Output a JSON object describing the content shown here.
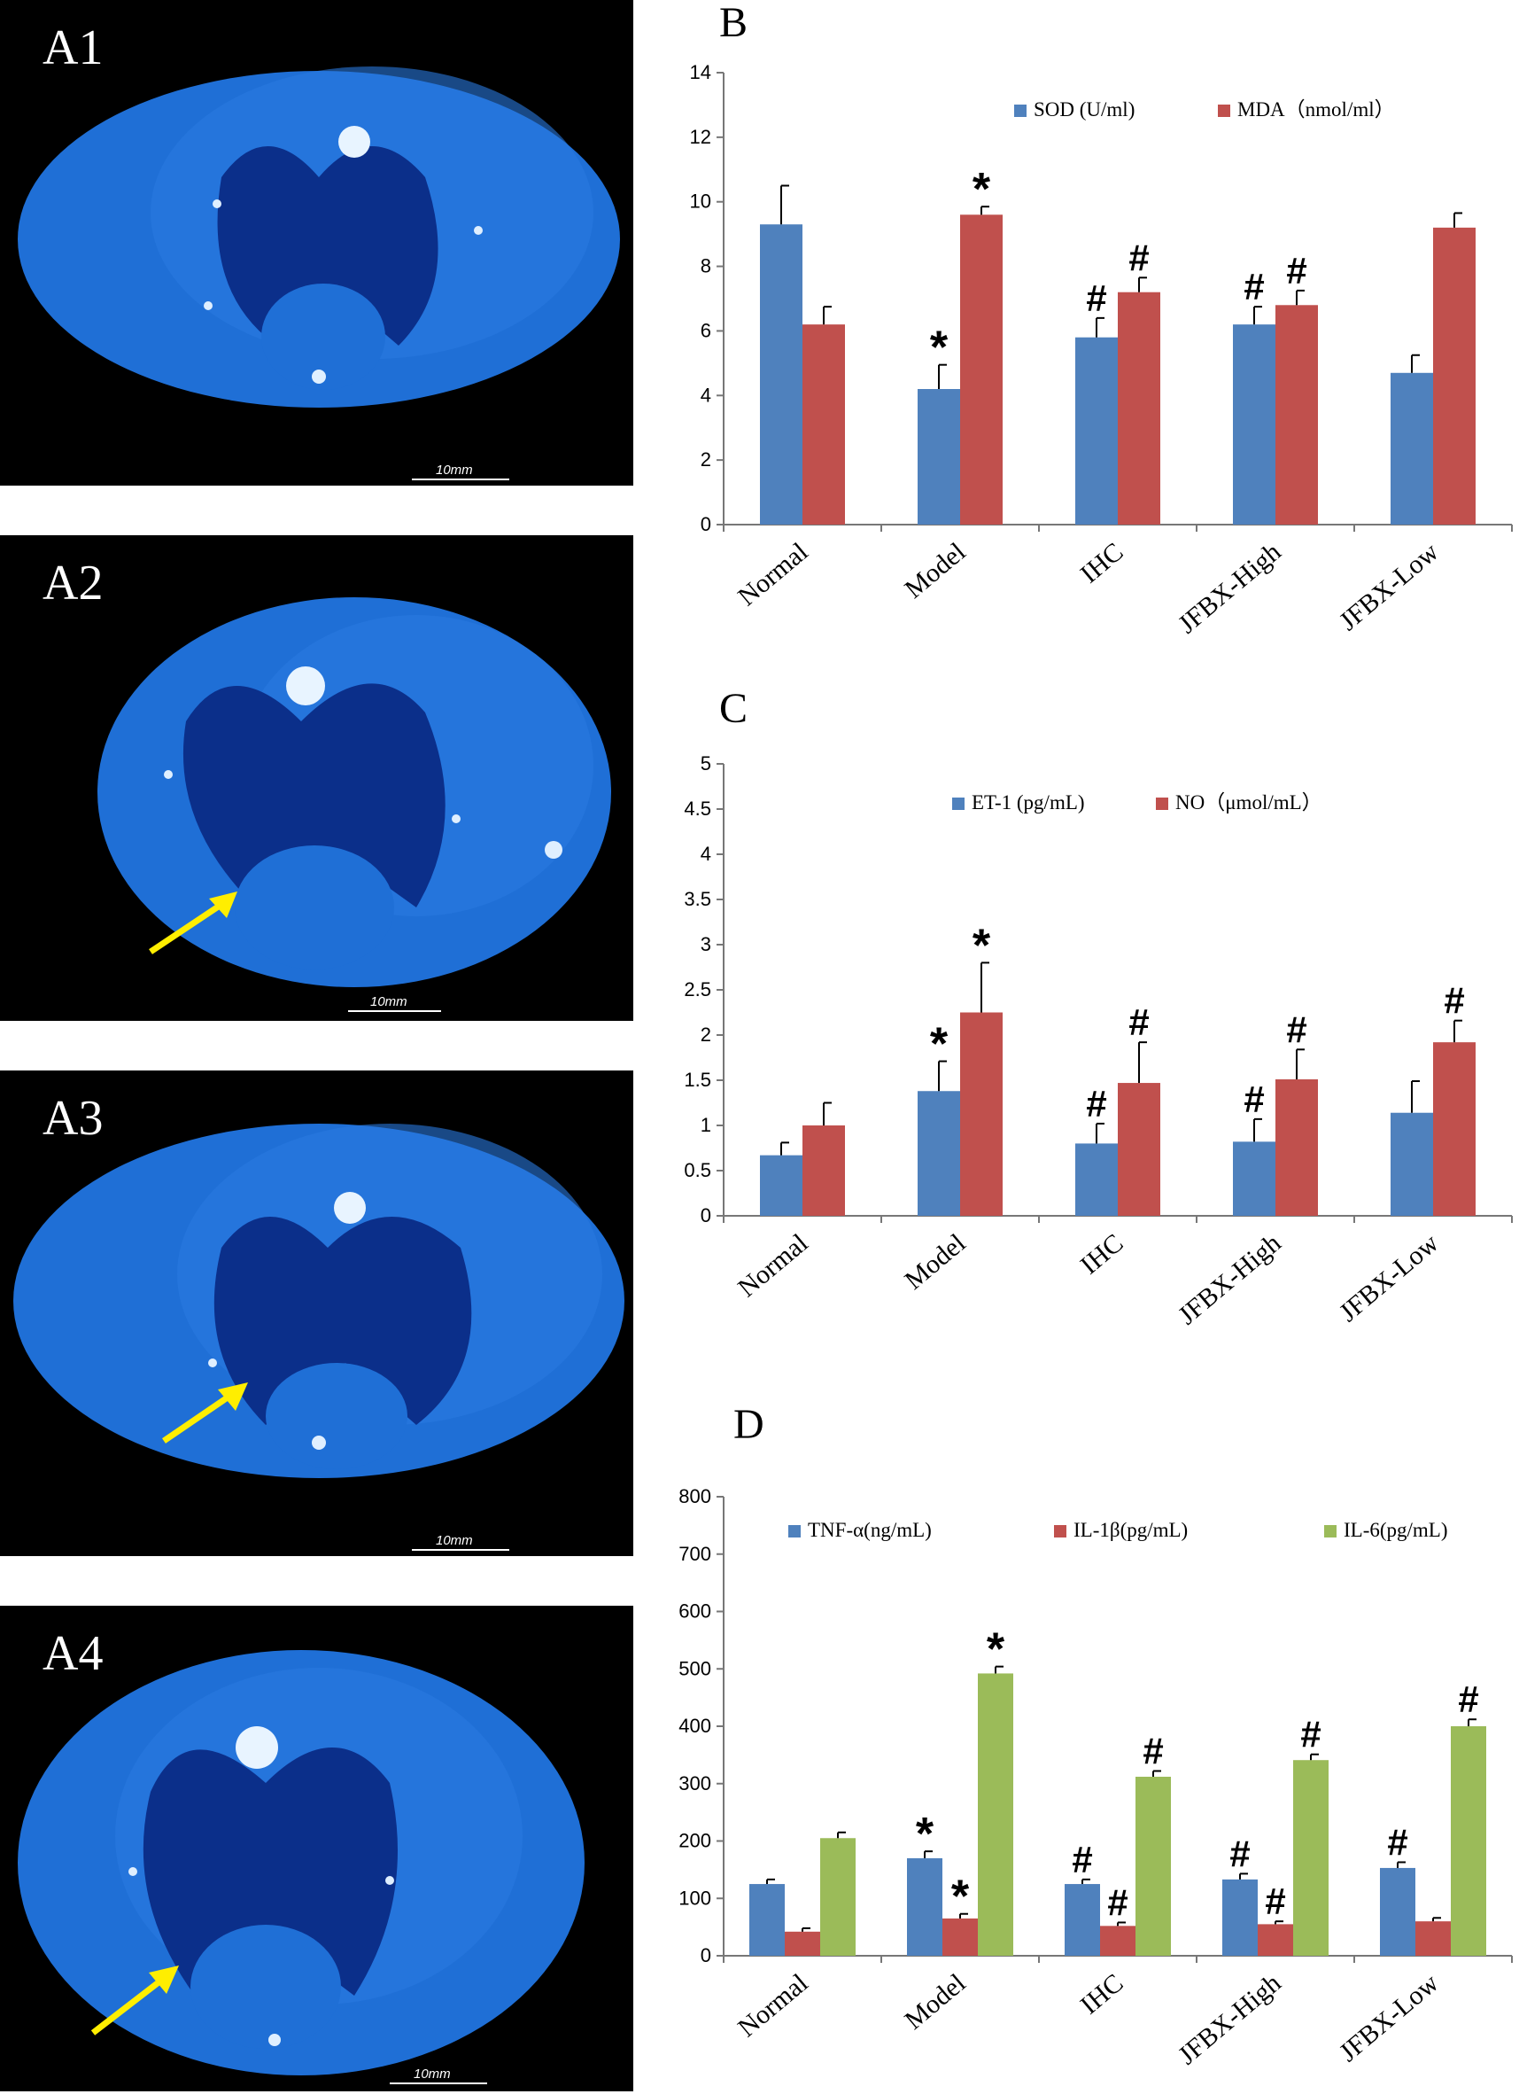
{
  "ct_panels": [
    {
      "label": "A1",
      "scale": "10mm",
      "arrow": false
    },
    {
      "label": "A2",
      "scale": "10mm",
      "arrow": true
    },
    {
      "label": "A3",
      "scale": "10mm",
      "arrow": true
    },
    {
      "label": "A4",
      "scale": "10mm",
      "arrow": true
    }
  ],
  "colors": {
    "blue": "#4F81BD",
    "red": "#C0504D",
    "green": "#9BBB59",
    "ct_body": "#1f6fd6",
    "ct_lung": "#0b2f8a",
    "arrow": "#ffee00"
  },
  "chart_data": [
    {
      "panel": "B",
      "type": "bar",
      "categories": [
        "Normal",
        "Model",
        "IHC",
        "JFBX-High",
        "JFBX-Low"
      ],
      "ylim": [
        0,
        14
      ],
      "yticks": [
        "0",
        "2",
        "4",
        "6",
        "8",
        "10",
        "12",
        "14"
      ],
      "ytick_values": [
        0,
        2,
        4,
        6,
        8,
        10,
        12,
        14
      ],
      "legend_position": "top-right",
      "series": [
        {
          "name": "SOD (U/ml)",
          "color": "#4F81BD",
          "values": [
            9.3,
            4.2,
            5.8,
            6.2,
            4.7
          ],
          "errors": [
            1.2,
            0.75,
            0.6,
            0.55,
            0.55
          ],
          "marks": [
            "",
            "*",
            "#",
            "#",
            ""
          ]
        },
        {
          "name": "MDA（nmol/ml）",
          "color": "#C0504D",
          "values": [
            6.2,
            9.6,
            7.2,
            6.8,
            9.2
          ],
          "errors": [
            0.55,
            0.25,
            0.45,
            0.45,
            0.45
          ],
          "marks": [
            "",
            "*",
            "#",
            "#",
            ""
          ]
        }
      ]
    },
    {
      "panel": "C",
      "type": "bar",
      "categories": [
        "Normal",
        "Model",
        "IHC",
        "JFBX-High",
        "JFBX-Low"
      ],
      "ylim": [
        0,
        5
      ],
      "yticks": [
        "0",
        "0.5",
        "1",
        "1.5",
        "2",
        "2.5",
        "3",
        "3.5",
        "4",
        "4.5",
        "5"
      ],
      "ytick_values": [
        0,
        0.5,
        1,
        1.5,
        2,
        2.5,
        3,
        3.5,
        4,
        4.5,
        5
      ],
      "legend_position": "top-right",
      "series": [
        {
          "name": "ET-1 (pg/mL)",
          "color": "#4F81BD",
          "values": [
            0.67,
            1.38,
            0.8,
            0.82,
            1.14
          ],
          "errors": [
            0.14,
            0.33,
            0.22,
            0.25,
            0.35
          ],
          "marks": [
            "",
            "*",
            "#",
            "#",
            ""
          ]
        },
        {
          "name": "NO（μmol/mL）",
          "color": "#C0504D",
          "values": [
            1.0,
            2.25,
            1.47,
            1.51,
            1.92
          ],
          "errors": [
            0.25,
            0.55,
            0.45,
            0.33,
            0.24
          ],
          "marks": [
            "",
            "*",
            "#",
            "#",
            "#"
          ]
        }
      ]
    },
    {
      "panel": "D",
      "type": "bar",
      "categories": [
        "Normal",
        "Model",
        "IHC",
        "JFBX-High",
        "JFBX-Low"
      ],
      "ylim": [
        0,
        800
      ],
      "yticks": [
        "0",
        "100",
        "200",
        "300",
        "400",
        "500",
        "600",
        "700",
        "800"
      ],
      "ytick_values": [
        0,
        100,
        200,
        300,
        400,
        500,
        600,
        700,
        800
      ],
      "legend_position": "top-right",
      "series": [
        {
          "name": "TNF-α(ng/mL)",
          "color": "#4F81BD",
          "values": [
            125,
            170,
            125,
            133,
            153
          ],
          "errors": [
            8,
            12,
            8,
            10,
            10
          ],
          "marks": [
            "",
            "*",
            "#",
            "#",
            "#"
          ]
        },
        {
          "name": "IL-1β(pg/mL)",
          "color": "#C0504D",
          "values": [
            42,
            65,
            52,
            55,
            60
          ],
          "errors": [
            6,
            8,
            6,
            5,
            6
          ],
          "marks": [
            "",
            "*",
            "#",
            "#",
            ""
          ]
        },
        {
          "name": "IL-6(pg/mL)",
          "color": "#9BBB59",
          "values": [
            205,
            492,
            312,
            341,
            400
          ],
          "errors": [
            10,
            12,
            10,
            10,
            12
          ],
          "marks": [
            "",
            "*",
            "#",
            "#",
            "#"
          ]
        }
      ]
    }
  ]
}
